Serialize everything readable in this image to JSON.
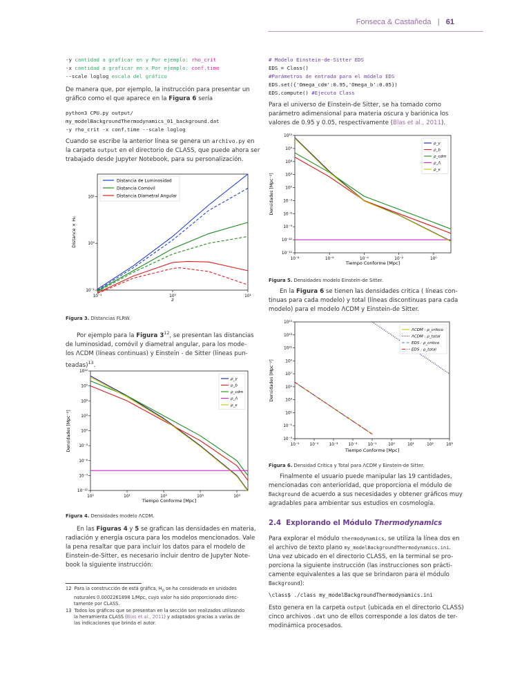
{
  "header": {
    "authors": "Fonseca & Castañeda",
    "separator": "|",
    "page_number": "61"
  },
  "left": {
    "code1": [
      {
        "prefix": "-y ",
        "comment": "cantidad a graficar en y Por ejemplo: ",
        "value": "rho_crit"
      },
      {
        "prefix": "-x ",
        "comment": "cantidad a graficar en x Por ejemplo: ",
        "value": "conf.time"
      },
      {
        "prefix": "--scale loglog ",
        "comment": "escala del gráfico",
        "value": ""
      }
    ],
    "para1": [
      "De manera que, por ejemplo, la instrucción para presentar un",
      "gráfico como el que aparece en la ",
      "Figura 6",
      " sería"
    ],
    "code2": [
      "python3 CPU.py output/",
      "my_modelBackgroundThermodynamics_01_background.dat",
      "-y rho_crit -x conf.time --scale loglog"
    ],
    "para2": [
      "Cuando se escribe la anterior línea se genera un ",
      "archivo.py",
      " en",
      "la carpeta ",
      "output",
      " en el directorio de CLASS, que puede ahora ser",
      "trabajado desde Jupyter Notebook, para su personalización."
    ],
    "fig3_caption": {
      "label": "Figura 3.",
      "text": " Distancias FLRW."
    },
    "para3": [
      "Por ejemplo para la ",
      "Figura 3",
      "12",
      ", se presentan las distancias",
      "de luminosidad, comóvil y diametral angular, para los mode-",
      "los ΛCDM (líneas continuas) y Einstein - de Sitter (líneas pun-",
      "teadas)",
      "13",
      "."
    ],
    "fig4_caption": {
      "label": "Figura 4.",
      "text": " Densidades modelo ΛCDM."
    },
    "para4": [
      "En las ",
      "Figuras 4",
      " y ",
      "5",
      " se grafican las densidades en materia,",
      "radiación y energía oscura para los modelos mencionados. Vale",
      "la pena resaltar que para incluir los datos para el modelo de",
      "Einstein-de-Sitter, es necesario incluir dentro de Jupyter Note-",
      "book la siguiente instrucción:"
    ],
    "footnotes": [
      {
        "num": "12",
        "lines": [
          "Para la construcción de está gráfica, H",
          "0",
          " se ha considerado en unidades",
          "naturales 0.0002261898 1/Mpc, cuyo valor ha sido proporcionado direc-",
          "tamente por CLASS."
        ]
      },
      {
        "num": "13",
        "lines": [
          "Todos los gráficos que se presentan en la sección son realizados utilizando",
          "la herramienta CLASS (",
          "Blas et al., 2011",
          ") y adaptados gracias a varias de",
          "las indicaciones que brinda el autor."
        ]
      }
    ]
  },
  "right": {
    "code3": [
      {
        "kind": "comment",
        "text": "# Modelo Einstein-de-Sitter EDS"
      },
      {
        "kind": "code",
        "text": "EDS = Class()"
      },
      {
        "kind": "comment",
        "text": "#Parámetros de entrada para el módelo EDS"
      },
      {
        "kind": "code",
        "text": "EDS.set({'Omega_cdm':0.95,'Omega_b':0.05})"
      },
      {
        "kind": "mixed",
        "text": "EDS.compute() ",
        "comment": "#Ejecuta Class"
      }
    ],
    "para5": [
      "Para el universo de Einstein-de Sitter, se ha tomado como",
      "parámetro adimensional para materia oscura y bariónica los",
      "valores de 0.95 y 0.05, respectivamente (",
      "Blas et al., 2011",
      ")."
    ],
    "fig5_caption": {
      "label": "Figura 5.",
      "text": " Densidades modelo Einstein-de Sitter."
    },
    "para6": [
      "En la ",
      "Figura 6",
      " se tienen las densidades critica ( líneas con-",
      "tinuas para cada modelo) y total (líneas discontinuas para cada",
      "modelo) para el modelo ΛCDM y Einstein-de Sitter."
    ],
    "fig6_caption": {
      "label": "Figura 6.",
      "text": " Densidad Crítica y Total para ΛCDM y Einstein-de Sitter."
    },
    "para7": [
      "Finalmente el usuario puede manipular las 19 cantidades,",
      "mencionadas con anterioridad, que proporciona el módulo de",
      "Background",
      " de acuerdo a sus necesidades y obtener gráficos muy",
      "agradables para ambientar sus estudios en cosmología."
    ],
    "section": {
      "number": "2.4",
      "title": "Explorando el Módulo ",
      "title_italic": "Thermodynamics"
    },
    "para8": [
      "Para explorar el módulo ",
      "thermodynamics",
      ", se utiliza la línea dos en",
      "el archivo de texto plano ",
      "my_modelBackgroundThermodynamics.ini",
      ".",
      "Una vez ubicado en el directorio CLASS, en la terminal se pro-",
      "porciona la siguiente instrucción (las instrucciones son prácti-",
      "camente equivalentes a las que se brindaron para el módulo",
      "Background",
      "):"
    ],
    "code4": "\\class$ ./class my_modelBackgroundThermodynamics.ini",
    "para9": [
      "Esto genera en la carpeta ",
      "output",
      " (ubicada en el directorio CLASS)",
      "cinco archivos ",
      ".dat",
      " uno de ellos corresponde a los datos de ter-",
      "modinámica procesados."
    ]
  },
  "chart_data": [
    {
      "id": "fig3",
      "type": "line",
      "xscale": "log",
      "yscale": "log",
      "xlim": [
        0.1,
        10
      ],
      "ylim": [
        0.1,
        30
      ],
      "xlabel": "z",
      "ylabel": "Distance × H₀",
      "xticks": [
        "10⁻¹",
        "10⁰",
        "10¹"
      ],
      "yticks": [
        "10⁻¹",
        "10⁰",
        "10¹"
      ],
      "legend": "top-left",
      "series": [
        {
          "name": "Distancia de Luminosidad",
          "model": "ΛCDM",
          "style": "solid",
          "color": "#1f3fcf",
          "x": [
            0.1,
            0.3,
            1,
            3,
            10
          ],
          "y": [
            0.105,
            0.33,
            1.4,
            6.5,
            30
          ]
        },
        {
          "name": "",
          "model": "EdS",
          "style": "dashed",
          "color": "#1f3fcf",
          "x": [
            0.1,
            0.3,
            1,
            3,
            10
          ],
          "y": [
            0.1,
            0.3,
            1.17,
            5.0,
            15
          ]
        },
        {
          "name": "Distancia Comóvil",
          "model": "ΛCDM",
          "style": "solid",
          "color": "#1c8c1c",
          "x": [
            0.1,
            0.3,
            1,
            3,
            10
          ],
          "y": [
            0.097,
            0.26,
            0.77,
            1.6,
            2.8
          ]
        },
        {
          "name": "",
          "model": "EdS",
          "style": "dashed",
          "color": "#1c8c1c",
          "x": [
            0.1,
            0.3,
            1,
            3,
            10
          ],
          "y": [
            0.093,
            0.24,
            0.59,
            1.0,
            1.4
          ]
        },
        {
          "name": "Distancia Diametral Angular",
          "model": "ΛCDM",
          "style": "solid",
          "color": "#e01c1c",
          "x": [
            0.1,
            0.3,
            1,
            1.6,
            3,
            10
          ],
          "y": [
            0.088,
            0.2,
            0.39,
            0.41,
            0.4,
            0.26
          ]
        },
        {
          "name": "",
          "model": "EdS",
          "style": "dashed",
          "color": "#e01c1c",
          "x": [
            0.1,
            0.3,
            1,
            1.25,
            3,
            10
          ],
          "y": [
            0.085,
            0.18,
            0.29,
            0.3,
            0.25,
            0.13
          ]
        }
      ]
    },
    {
      "id": "fig4",
      "type": "line",
      "xscale": "log",
      "yscale": "log",
      "xlim": [
        1,
        20000
      ],
      "ylim": [
        1e-12,
        1000000000000.0
      ],
      "xlabel": "Tiempo Conforme [Mpc]",
      "ylabel": "Densidades [Mpc⁻²]",
      "xticks": [
        "10⁰",
        "10¹",
        "10²",
        "10³",
        "10⁴"
      ],
      "yticks": [
        "10⁻¹²",
        "10⁻⁹",
        "10⁻⁶",
        "10⁻³",
        "10⁰",
        "10³",
        "10⁶",
        "10⁹",
        "10¹²"
      ],
      "legend": "top-right",
      "series": [
        {
          "name": "ρ_γ",
          "color": "#1a1a9e",
          "x": [
            1,
            10,
            100,
            1000,
            10000,
            20000
          ],
          "y": [
            100000000000.0,
            10000000.0,
            300.0,
            0.001,
            1e-09,
            1e-12
          ]
        },
        {
          "name": "ρ_b",
          "color": "#e01c1c",
          "x": [
            1,
            10,
            100,
            1000,
            10000,
            20000
          ],
          "y": [
            1000000000.0,
            1000000.0,
            100.0,
            0.01,
            1e-07,
            1e-10
          ]
        },
        {
          "name": "ρ_cdm",
          "color": "#1c8c1c",
          "x": [
            1,
            10,
            100,
            1000,
            10000,
            20000
          ],
          "y": [
            10000000000.0,
            10000000.0,
            1000.0,
            0.1,
            1e-06,
            1e-09
          ]
        },
        {
          "name": "ρ_Λ",
          "color": "#cc22cc",
          "x": [
            1,
            20000
          ],
          "y": [
            1e-08,
            1e-08
          ]
        },
        {
          "name": "ρ_ν",
          "color": "#c8c800",
          "x": [
            1,
            10,
            100,
            1000,
            10000,
            20000
          ],
          "y": [
            60000000000.0,
            6000000.0,
            200.0,
            0.0007,
            7e-10,
            7e-13
          ]
        }
      ]
    },
    {
      "id": "fig5",
      "type": "line",
      "xscale": "log",
      "yscale": "log",
      "xlim": [
        1e-08,
        10.0
      ],
      "ylim": [
        1e-15,
        1000000000000.0
      ],
      "xlabel": "Tiempo Conforme [Mpc]",
      "ylabel": "Densidades [Mpc⁻²]",
      "xticks": [
        "10⁻⁸",
        "10⁻⁶",
        "10⁻⁴",
        "10⁻²",
        "10⁰"
      ],
      "yticks": [
        "10⁻¹⁵",
        "10⁻¹²",
        "10⁻⁹",
        "10⁻⁶",
        "10⁻³",
        "10⁰",
        "10³",
        "10⁶",
        "10⁹",
        "10¹²"
      ],
      "legend": "top-right",
      "series": [
        {
          "name": "ρ_γ",
          "color": "#1a1a9e",
          "x": [
            1e-08,
            1e-06,
            0.0001,
            0.01,
            1,
            10
          ],
          "y": [
            300000000000.0,
            5000.0,
            0.001,
            5e-07,
            5e-11,
            5e-13
          ]
        },
        {
          "name": "ρ_b",
          "color": "#e01c1c",
          "x": [
            1e-08,
            1e-06,
            0.0001,
            0.01,
            1,
            10
          ],
          "y": [
            10000000.0,
            300.0,
            0.001,
            1e-06,
            1e-09,
            3e-11
          ]
        },
        {
          "name": "ρ_cdm",
          "color": "#1c8c1c",
          "x": [
            1e-08,
            1e-06,
            0.0001,
            0.01,
            1,
            10
          ],
          "y": [
            100000000.0,
            3000.0,
            0.01,
            1e-05,
            1e-08,
            3e-10
          ]
        },
        {
          "name": "ρ_Λ",
          "color": "#cc22cc",
          "x": [
            1e-08,
            10
          ],
          "y": [
            1e-12,
            1e-12
          ]
        },
        {
          "name": "ρ_ν",
          "color": "#c8c800",
          "x": [
            1e-08,
            1e-06,
            0.0001,
            0.01,
            1,
            10
          ],
          "y": [
            200000000000.0,
            3000.0,
            0.0008,
            4e-07,
            4e-11,
            4e-13
          ]
        }
      ]
    },
    {
      "id": "fig6",
      "type": "line",
      "xscale": "log",
      "yscale": "log",
      "xlim": [
        1e-05,
        1000.0
      ],
      "ylim": [
        0.001,
        1000000000000000.0
      ],
      "xlabel": "Tiempo Conforme [Mpc]",
      "ylabel": "Densidades [Mpc⁻²]",
      "xticks": [
        "10⁻⁵",
        "10⁻⁴",
        "10⁻³",
        "10⁻²",
        "10⁻¹",
        "10⁰",
        "10¹",
        "10²",
        "10³"
      ],
      "yticks": [
        "10⁻³",
        "10⁻¹",
        "10¹",
        "10³",
        "10⁵",
        "10⁷",
        "10⁹",
        "10¹¹",
        "10¹³",
        "10¹⁵"
      ],
      "legend": "top-right",
      "series": [
        {
          "name": "ΛCDM : ρ_crítico",
          "style": "solid",
          "color": "#c8c800",
          "x": [
            1e-05,
            0.001,
            0.1
          ],
          "y": [
            500000.0,
            50.0,
            0.005
          ]
        },
        {
          "name": "ΛCDM : ρ_total",
          "style": "dotted",
          "color": "#1a1a6e",
          "x": [
            0.1,
            1,
            10,
            100,
            1000
          ],
          "y": [
            1000000000000000.0,
            10000000000000.0,
            100000000000.0,
            1000000000.0,
            10000000.0
          ]
        },
        {
          "name": "EDS : ρ_crítico",
          "style": "dashed",
          "color": "#2a8ac8",
          "x": [
            1e-05,
            0.001,
            0.1
          ],
          "y": [
            500000.0,
            50.0,
            0.005
          ]
        },
        {
          "name": "EDS : ρ_total",
          "style": "dashdot",
          "color": "#e01c1c",
          "x": [
            1e-05,
            0.001,
            0.1
          ],
          "y": [
            500000.0,
            50.0,
            0.005
          ]
        }
      ]
    }
  ]
}
